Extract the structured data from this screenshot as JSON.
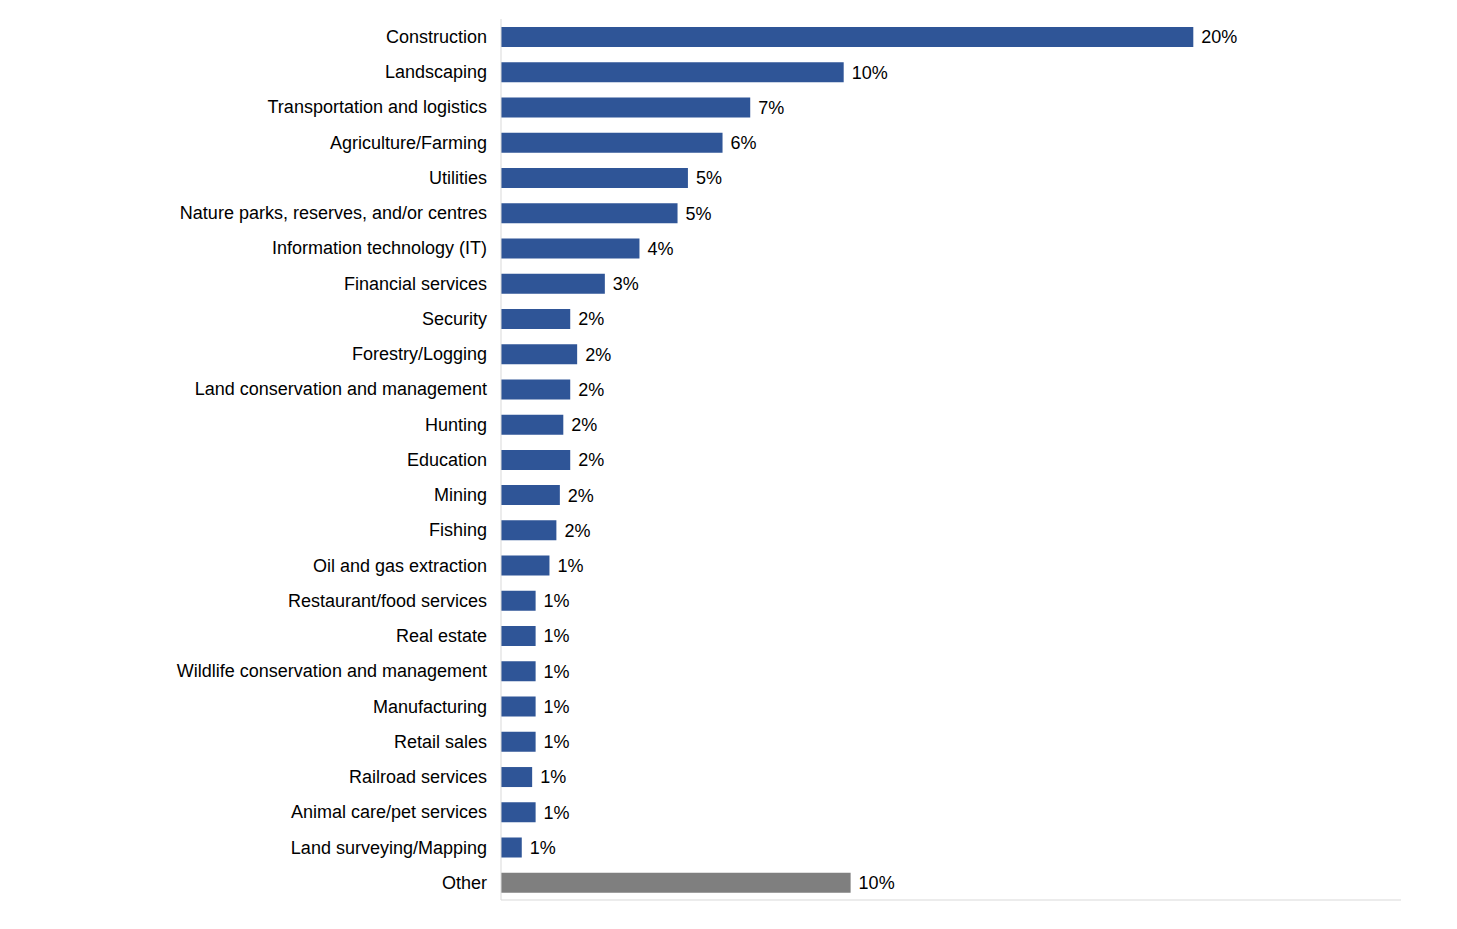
{
  "chart_data": {
    "type": "bar",
    "orientation": "horizontal",
    "categories": [
      "Construction",
      "Landscaping",
      "Transportation and logistics",
      "Agriculture/Farming",
      "Utilities",
      "Nature parks, reserves, and/or centres",
      "Information technology (IT)",
      "Financial services",
      "Security",
      "Forestry/Logging",
      "Land conservation and management",
      "Hunting",
      "Education",
      "Mining",
      "Fishing",
      "Oil and gas extraction",
      "Restaurant/food services",
      "Real estate",
      "Wildlife conservation and management",
      "Manufacturing",
      "Retail sales",
      "Railroad services",
      "Animal care/pet services",
      "Land surveying/Mapping",
      "Other"
    ],
    "values": [
      20,
      9.9,
      7.2,
      6.4,
      5.4,
      5.1,
      4.0,
      3.0,
      2.0,
      2.2,
      2.0,
      1.8,
      2.0,
      1.7,
      1.6,
      1.4,
      1.0,
      1.0,
      1.0,
      1.0,
      1.0,
      0.9,
      1.0,
      0.6,
      10.1
    ],
    "value_labels": [
      "20%",
      "10%",
      "7%",
      "6%",
      "5%",
      "5%",
      "4%",
      "3%",
      "2%",
      "2%",
      "2%",
      "2%",
      "2%",
      "2%",
      "2%",
      "1%",
      "1%",
      "1%",
      "1%",
      "1%",
      "1%",
      "1%",
      "1%",
      "1%",
      "10%"
    ],
    "colors": [
      "#2F5597",
      "#2F5597",
      "#2F5597",
      "#2F5597",
      "#2F5597",
      "#2F5597",
      "#2F5597",
      "#2F5597",
      "#2F5597",
      "#2F5597",
      "#2F5597",
      "#2F5597",
      "#2F5597",
      "#2F5597",
      "#2F5597",
      "#2F5597",
      "#2F5597",
      "#2F5597",
      "#2F5597",
      "#2F5597",
      "#2F5597",
      "#2F5597",
      "#2F5597",
      "#2F5597",
      "#7F7F7F"
    ],
    "xlim": [
      0,
      26
    ],
    "grid": false,
    "data_labels": true,
    "tick_labels": "y"
  }
}
